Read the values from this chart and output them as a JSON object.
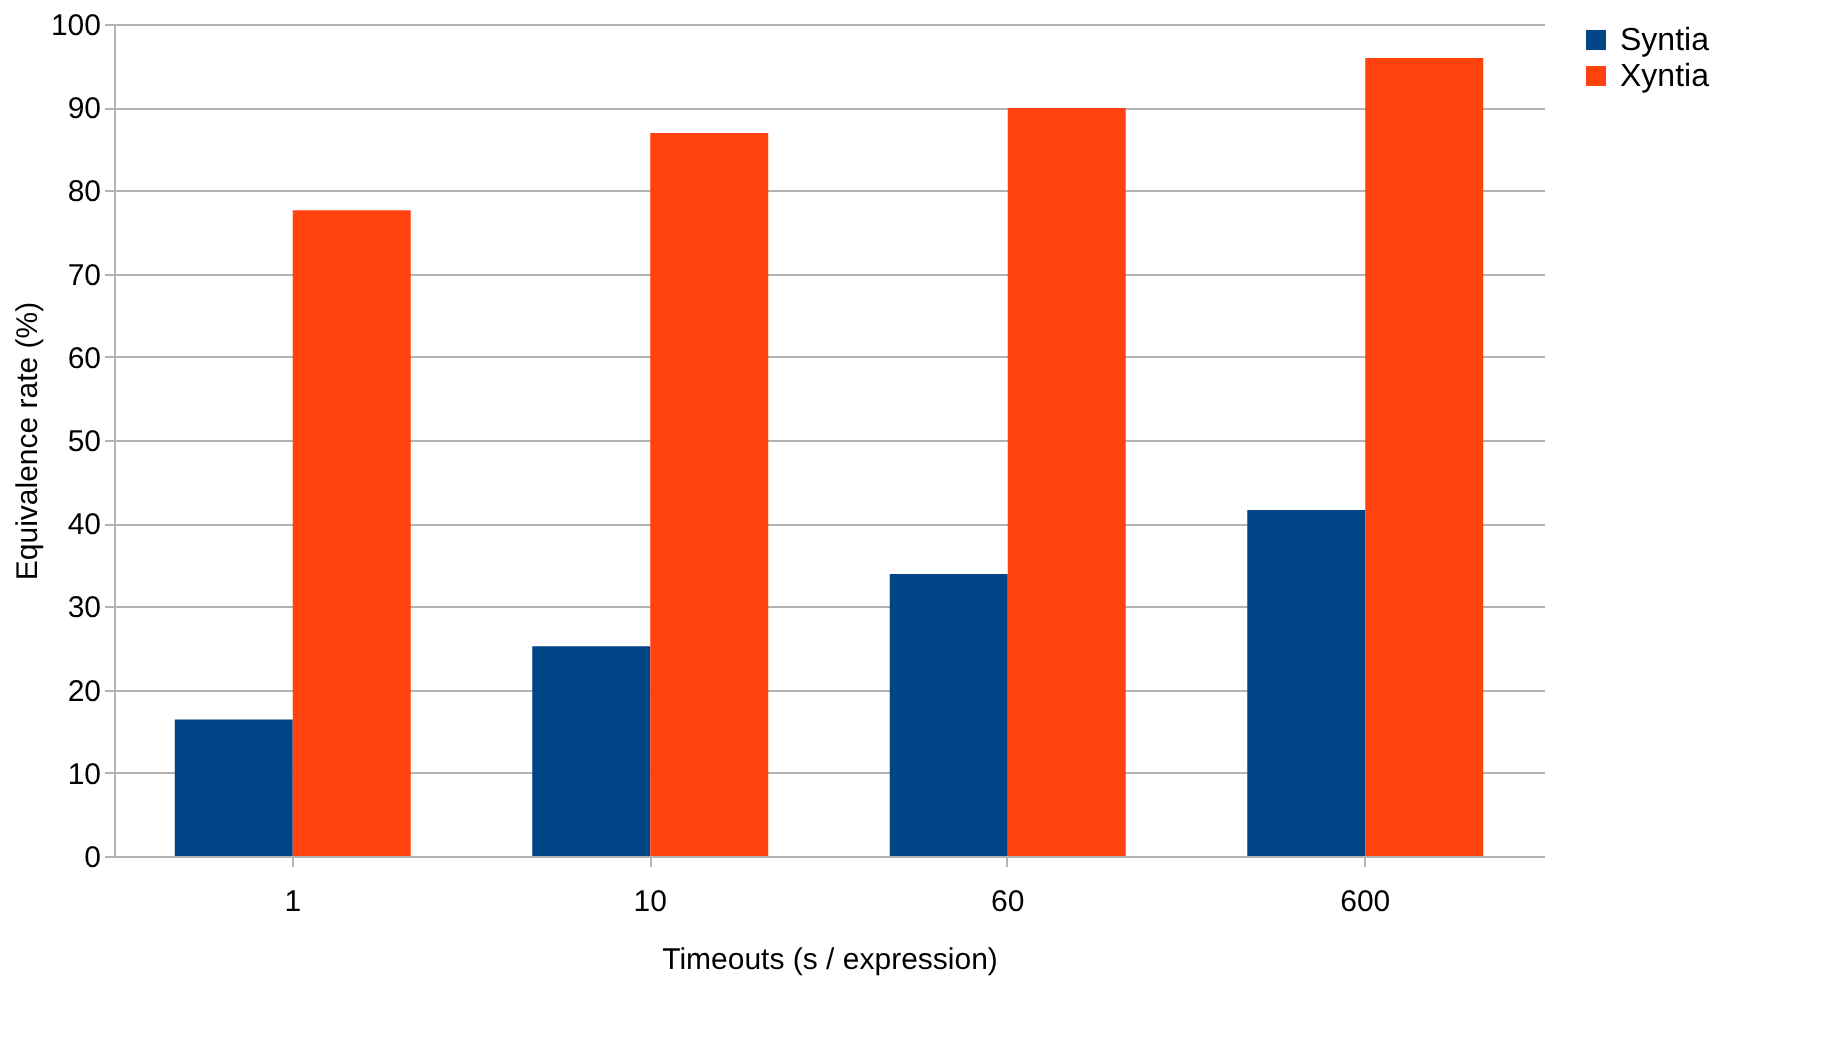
{
  "chart_data": {
    "type": "bar",
    "xlabel": "Timeouts (s / expression)",
    "ylabel": "Equivalence rate (%)",
    "categories": [
      "1",
      "10",
      "60",
      "600"
    ],
    "series": [
      {
        "name": "Syntia",
        "color": "#004586",
        "values": [
          16.4,
          25.2,
          33.9,
          41.6
        ]
      },
      {
        "name": "Xyntia",
        "color": "#ff420e",
        "values": [
          77.6,
          86.9,
          89.9,
          95.9
        ]
      }
    ],
    "ylim": [
      0,
      100
    ],
    "yticks": [
      0,
      10,
      20,
      30,
      40,
      50,
      60,
      70,
      80,
      90,
      100
    ],
    "grid": "y",
    "legend": "right"
  }
}
